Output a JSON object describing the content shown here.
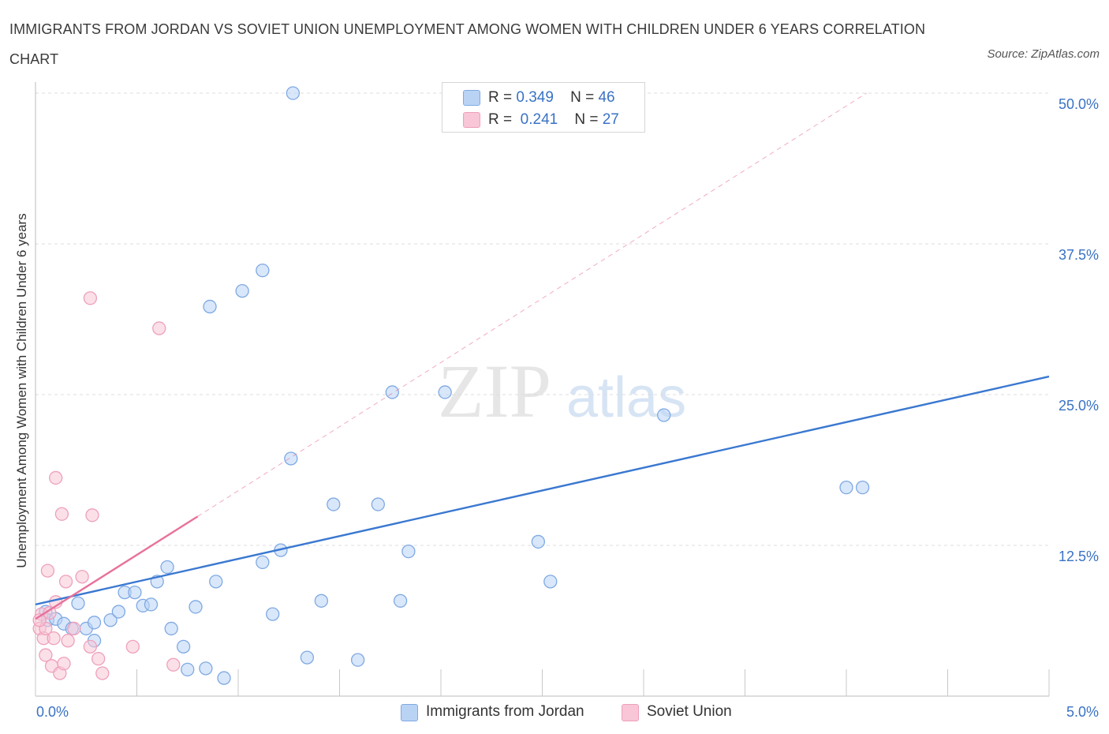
{
  "page": {
    "title": "IMMIGRANTS FROM JORDAN VS SOVIET UNION UNEMPLOYMENT AMONG WOMEN WITH CHILDREN UNDER 6 YEARS CORRELATION CHART",
    "source": "Source: ZipAtlas.com"
  },
  "colors": {
    "jordan": "#3a78d0",
    "jordan_fill": "#b9d3f5",
    "soviet": "#e8719b",
    "soviet_fill": "#f8c6d6",
    "grid": "#dcdcdc",
    "tick_text": "#3a72c4"
  },
  "legend": {
    "rows": [
      {
        "r_label": "R =",
        "r_value": "0.349",
        "n_label": "N =",
        "n_value": "46"
      },
      {
        "r_label": "R =",
        "r_value": "0.241",
        "n_label": "N =",
        "n_value": "27"
      }
    ]
  },
  "chart_data": {
    "type": "scatter",
    "xlabel": "",
    "ylabel": "Unemployment Among Women with Children Under 6 years",
    "xlim": [
      0,
      5
    ],
    "ylim": [
      0,
      50
    ],
    "x_ticks": [
      "0.0%",
      "5.0%"
    ],
    "y_ticks": [
      {
        "value": 12.5,
        "label": "12.5%"
      },
      {
        "value": 25,
        "label": "25.0%"
      },
      {
        "value": 37.5,
        "label": "37.5%"
      },
      {
        "value": 50,
        "label": "50.0%"
      }
    ],
    "watermark": {
      "zip": "ZIP",
      "atlas": "atlas"
    },
    "series": [
      {
        "name": "Immigrants from Jordan",
        "color": "#3a78d0",
        "r": 0.349,
        "n": 46,
        "trend": {
          "x": [
            0,
            5
          ],
          "y": [
            7.6,
            26.5
          ],
          "dashed_ext": false
        },
        "points": [
          [
            0.05,
            7.0
          ],
          [
            0.06,
            6.3
          ],
          [
            0.1,
            6.4
          ],
          [
            0.14,
            6.0
          ],
          [
            0.18,
            5.6
          ],
          [
            0.21,
            7.7
          ],
          [
            0.25,
            5.6
          ],
          [
            0.29,
            4.6
          ],
          [
            0.29,
            6.1
          ],
          [
            0.37,
            6.3
          ],
          [
            0.41,
            7.0
          ],
          [
            0.44,
            8.6
          ],
          [
            0.49,
            8.6
          ],
          [
            0.53,
            7.5
          ],
          [
            0.57,
            7.6
          ],
          [
            0.6,
            9.5
          ],
          [
            0.65,
            10.7
          ],
          [
            0.67,
            5.6
          ],
          [
            0.73,
            4.1
          ],
          [
            0.75,
            2.2
          ],
          [
            0.79,
            7.4
          ],
          [
            0.84,
            2.3
          ],
          [
            0.89,
            9.5
          ],
          [
            0.93,
            1.5
          ],
          [
            0.86,
            32.3
          ],
          [
            1.02,
            33.6
          ],
          [
            1.12,
            35.3
          ],
          [
            1.12,
            11.1
          ],
          [
            1.17,
            6.8
          ],
          [
            1.21,
            12.1
          ],
          [
            1.26,
            19.7
          ],
          [
            1.27,
            50.0
          ],
          [
            1.34,
            3.2
          ],
          [
            1.41,
            7.9
          ],
          [
            1.47,
            15.9
          ],
          [
            1.59,
            3.0
          ],
          [
            1.69,
            15.9
          ],
          [
            1.76,
            25.2
          ],
          [
            1.8,
            7.9
          ],
          [
            1.84,
            12.0
          ],
          [
            2.02,
            25.2
          ],
          [
            2.48,
            12.8
          ],
          [
            2.54,
            9.5
          ],
          [
            3.1,
            23.3
          ],
          [
            4.0,
            17.3
          ],
          [
            4.08,
            17.3
          ]
        ]
      },
      {
        "name": "Soviet Union",
        "color": "#e8719b",
        "r": 0.241,
        "n": 27,
        "trend": {
          "x": [
            0,
            0.8
          ],
          "y": [
            6.4,
            14.9
          ],
          "dashed_ext": true,
          "ext_to": [
            4.1,
            50.0
          ]
        },
        "points": [
          [
            0.02,
            5.6
          ],
          [
            0.03,
            6.8
          ],
          [
            0.04,
            4.8
          ],
          [
            0.05,
            3.4
          ],
          [
            0.05,
            5.6
          ],
          [
            0.06,
            10.4
          ],
          [
            0.08,
            2.5
          ],
          [
            0.09,
            4.8
          ],
          [
            0.1,
            7.8
          ],
          [
            0.1,
            18.1
          ],
          [
            0.12,
            1.9
          ],
          [
            0.13,
            15.1
          ],
          [
            0.14,
            2.7
          ],
          [
            0.15,
            9.5
          ],
          [
            0.16,
            4.6
          ],
          [
            0.19,
            5.6
          ],
          [
            0.23,
            9.9
          ],
          [
            0.27,
            33.0
          ],
          [
            0.27,
            4.1
          ],
          [
            0.28,
            15.0
          ],
          [
            0.31,
            3.1
          ],
          [
            0.33,
            1.9
          ],
          [
            0.48,
            4.1
          ],
          [
            0.61,
            30.5
          ],
          [
            0.68,
            2.6
          ],
          [
            0.02,
            6.3
          ],
          [
            0.07,
            6.9
          ]
        ]
      }
    ]
  }
}
